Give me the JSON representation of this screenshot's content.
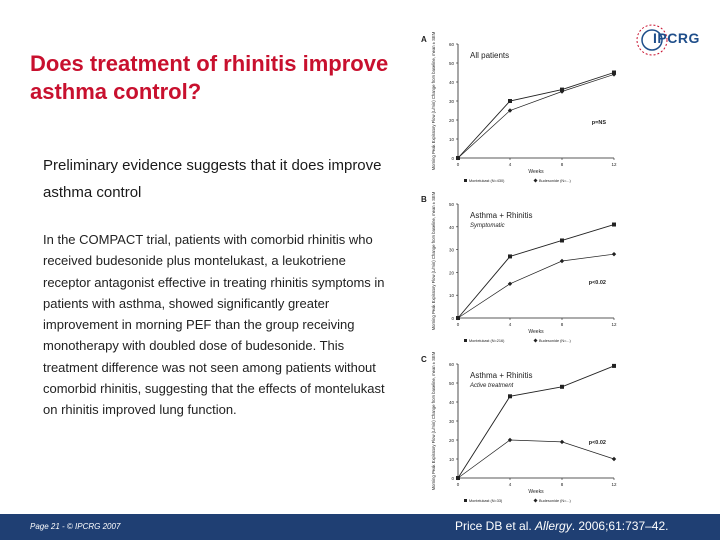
{
  "slide": {
    "title": "Does treatment of rhinitis improve asthma control?",
    "subtitle": "Preliminary evidence suggests that it does improve asthma control",
    "body": "In the COMPACT trial, patients with comorbid rhinitis who received budesonide plus montelukast, a leukotriene receptor antagonist effective in treating rhinitis symptoms in patients with asthma, showed significantly greater improvement in morning PEF than the group receiving monotherapy with doubled dose of budesonide. This treatment difference was not seen among patients without comorbid rhinitis, suggesting that the effects of montelukast on rhinitis improved lung function.",
    "logo_text": "IPCRG",
    "footer_left": "Page 21 - © IPCRG 2007",
    "citation_prefix": "Price DB et al. ",
    "citation_journal": "Allergy",
    "citation_suffix": ". 2006;61:737–42."
  },
  "colors": {
    "title": "#c8102e",
    "footer_bg": "#1f3f73",
    "logo": "#1f4e8a",
    "line": "#222222"
  },
  "chart_data": [
    {
      "type": "line",
      "panel_label": "A",
      "title": "All patients",
      "xlabel": "Weeks",
      "ylabel": "Morning Peak Expiratory Flow (L/min) Change from baseline, mean ± SEM",
      "x": [
        0,
        4,
        8,
        12
      ],
      "ylim": [
        0,
        60
      ],
      "yticks": [
        0,
        10,
        20,
        30,
        40,
        50,
        60
      ],
      "xticks": [
        0,
        4,
        8,
        12
      ],
      "p_value": "p=NS",
      "series": [
        {
          "name": "Montelukast (N=430)",
          "marker": "square",
          "values": [
            0,
            30,
            36,
            45
          ]
        },
        {
          "name": "Budesonide (N=...)",
          "marker": "diamond",
          "values": [
            0,
            25,
            35,
            44
          ]
        }
      ]
    },
    {
      "type": "line",
      "panel_label": "B",
      "title": "Asthma + Rhinitis",
      "subtitle": "Symptomatic",
      "xlabel": "Weeks",
      "ylabel": "Morning Peak Expiratory Flow (L/min) Change from baseline, mean ± SEM",
      "x": [
        0,
        4,
        8,
        12
      ],
      "ylim": [
        0,
        50
      ],
      "yticks": [
        0,
        10,
        20,
        30,
        40,
        50
      ],
      "xticks": [
        0,
        4,
        8,
        12
      ],
      "p_value": "p<0.02",
      "series": [
        {
          "name": "Montelukast (N=216)",
          "marker": "square",
          "values": [
            0,
            27,
            34,
            41
          ]
        },
        {
          "name": "Budesonide (N=...)",
          "marker": "diamond",
          "values": [
            0,
            15,
            25,
            28
          ]
        }
      ]
    },
    {
      "type": "line",
      "panel_label": "C",
      "title": "Asthma + Rhinitis",
      "subtitle": "Active treatment",
      "xlabel": "Weeks",
      "ylabel": "Morning Peak Expiratory Flow (L/min) Change from baseline, mean ± SEM",
      "x": [
        0,
        4,
        8,
        12
      ],
      "ylim": [
        0,
        60
      ],
      "yticks": [
        0,
        10,
        20,
        30,
        40,
        50,
        60
      ],
      "xticks": [
        0,
        4,
        8,
        12
      ],
      "p_value": "p<0.02",
      "series": [
        {
          "name": "Montelukast (N=33)",
          "marker": "square",
          "values": [
            0,
            43,
            48,
            59
          ]
        },
        {
          "name": "Budesonide (N=...)",
          "marker": "diamond",
          "values": [
            0,
            20,
            19,
            10
          ]
        }
      ]
    }
  ]
}
